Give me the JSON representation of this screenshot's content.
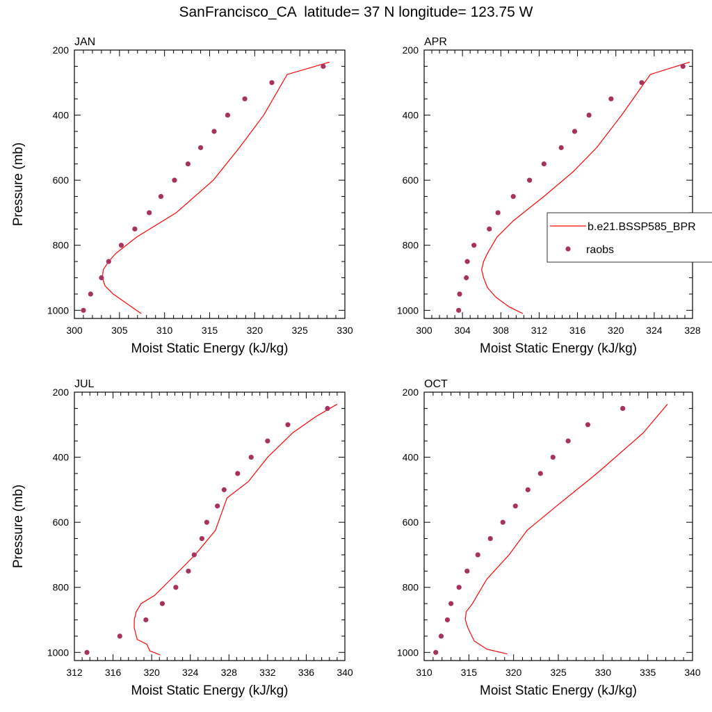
{
  "title": "SanFrancisco_CA  latitude= 37 N longitude= 123.75 W",
  "legend": {
    "model_label": "b.e21.BSSP585_BPR",
    "obs_label": "raobs",
    "location": "right of APR panel"
  },
  "colors": {
    "model": "#ff0000",
    "obs": "#a8325e"
  },
  "chart_data": [
    {
      "type": "line",
      "panel_label": "JAN",
      "xlabel": "Moist Static Energy (kJ/kg)",
      "ylabel": "Pressure (mb)",
      "xlim": [
        300,
        330
      ],
      "xticks": [
        300,
        305,
        310,
        315,
        320,
        325,
        330
      ],
      "ylim": [
        1025,
        200
      ],
      "yticks": [
        200,
        400,
        600,
        800,
        1000
      ],
      "series": [
        {
          "kind": "line",
          "x": [
            307.4,
            305.6,
            304.3,
            303.4,
            303.1,
            303.2,
            303.8,
            304.6,
            306.9,
            311.3,
            315.4,
            318.3,
            321.0,
            323.6,
            328.3
          ],
          "y": [
            1010,
            975,
            950,
            925,
            900,
            875,
            850,
            825,
            775,
            700,
            600,
            500,
            400,
            275,
            237
          ]
        },
        {
          "kind": "scatter",
          "x": [
            301.0,
            301.8,
            303.0,
            303.8,
            305.2,
            306.7,
            308.3,
            309.6,
            311.1,
            312.6,
            314.0,
            315.5,
            317.0,
            318.9,
            321.9,
            327.6
          ],
          "y": [
            1000,
            950,
            900,
            850,
            800,
            750,
            700,
            650,
            600,
            550,
            500,
            450,
            400,
            350,
            300,
            250
          ]
        }
      ]
    },
    {
      "type": "line",
      "panel_label": "APR",
      "xlabel": "Moist Static Energy (kJ/kg)",
      "ylabel": "",
      "xlim": [
        300,
        328
      ],
      "xticks": [
        300,
        304,
        308,
        312,
        316,
        320,
        324,
        328
      ],
      "ylim": [
        1025,
        200
      ],
      "yticks": [
        200,
        400,
        600,
        800,
        1000
      ],
      "series": [
        {
          "kind": "line",
          "x": [
            310.3,
            308.9,
            307.5,
            306.6,
            306.2,
            306.0,
            306.2,
            306.6,
            307.6,
            309.3,
            312.5,
            315.5,
            318.0,
            320.6,
            323.6,
            327.7
          ],
          "y": [
            1010,
            990,
            960,
            930,
            900,
            875,
            850,
            825,
            775,
            725,
            650,
            575,
            500,
            400,
            275,
            237
          ]
        },
        {
          "kind": "scatter",
          "x": [
            303.6,
            303.7,
            304.4,
            304.5,
            305.2,
            306.8,
            307.7,
            309.3,
            311.0,
            312.5,
            314.3,
            315.7,
            317.2,
            319.5,
            322.7,
            327.0
          ],
          "y": [
            1000,
            950,
            900,
            850,
            800,
            750,
            700,
            650,
            600,
            550,
            500,
            450,
            400,
            350,
            300,
            250
          ]
        }
      ]
    },
    {
      "type": "line",
      "panel_label": "JUL",
      "xlabel": "Moist Static Energy (kJ/kg)",
      "ylabel": "Pressure (mb)",
      "xlim": [
        312,
        340
      ],
      "xticks": [
        312,
        316,
        320,
        324,
        328,
        332,
        336,
        340
      ],
      "ylim": [
        1025,
        200
      ],
      "yticks": [
        200,
        400,
        600,
        800,
        1000
      ],
      "series": [
        {
          "kind": "line",
          "x": [
            320.9,
            319.8,
            319.5,
            318.5,
            318.2,
            318.2,
            318.4,
            318.9,
            320.3,
            322.0,
            324.5,
            326.6,
            327.8,
            330.0,
            332.0,
            334.6,
            337.0,
            339.2
          ],
          "y": [
            1008,
            995,
            975,
            960,
            925,
            900,
            875,
            850,
            825,
            775,
            700,
            625,
            525,
            475,
            400,
            325,
            275,
            237
          ]
        },
        {
          "kind": "scatter",
          "x": [
            313.3,
            316.7,
            319.4,
            321.1,
            322.5,
            323.8,
            324.4,
            325.2,
            325.7,
            326.8,
            327.5,
            328.9,
            330.3,
            332.0,
            334.1,
            338.2
          ],
          "y": [
            1000,
            950,
            900,
            850,
            800,
            750,
            700,
            650,
            600,
            550,
            500,
            450,
            400,
            350,
            300,
            250
          ]
        }
      ]
    },
    {
      "type": "line",
      "panel_label": "OCT",
      "xlabel": "Moist Static Energy (kJ/kg)",
      "ylabel": "",
      "xlim": [
        310,
        340
      ],
      "xticks": [
        310,
        315,
        320,
        325,
        330,
        335,
        340
      ],
      "ylim": [
        1025,
        200
      ],
      "yticks": [
        200,
        400,
        600,
        800,
        1000
      ],
      "series": [
        {
          "kind": "line",
          "x": [
            319.3,
            317.0,
            315.6,
            314.9,
            314.6,
            314.7,
            315.4,
            317.0,
            319.5,
            321.5,
            324.8,
            329.3,
            334.5,
            337.2
          ],
          "y": [
            1005,
            990,
            965,
            925,
            900,
            875,
            850,
            775,
            700,
            625,
            550,
            450,
            325,
            237
          ]
        },
        {
          "kind": "scatter",
          "x": [
            311.3,
            311.9,
            312.6,
            313.0,
            313.9,
            314.8,
            316.0,
            317.4,
            318.8,
            320.2,
            321.6,
            323.0,
            324.4,
            326.1,
            328.3,
            332.2
          ],
          "y": [
            1000,
            950,
            900,
            850,
            800,
            750,
            700,
            650,
            600,
            550,
            500,
            450,
            400,
            350,
            300,
            250
          ]
        }
      ]
    }
  ]
}
